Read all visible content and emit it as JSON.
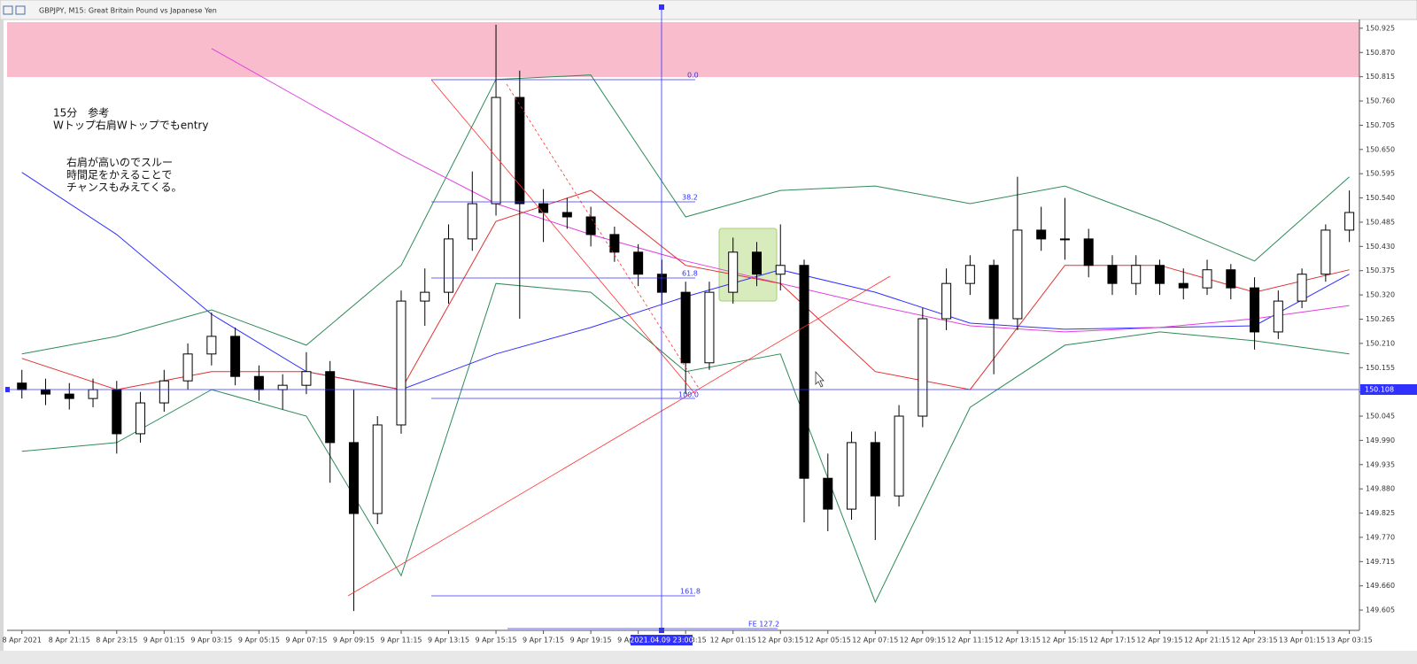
{
  "chart_data": {
    "type": "candlestick",
    "title": "GBPJPY, M15:  Great Britain Pound vs Japanese Yen",
    "annotations": [
      "15分　参考",
      "Wトップ右肩Wトップでもentry",
      "右肩が高いのでスルー",
      "時間足をかえることで",
      "チャンスもみえてくる。"
    ],
    "fib_labels": [
      "0.0",
      "38.2",
      "61.8",
      "100.0",
      "161.8",
      "FE  127.2"
    ],
    "crosshair_label": "2021.04.09 23:00",
    "current_price": 150.108,
    "up_color": "#ffffff",
    "down_color": "#000000",
    "xlim": [
      -2.5,
      225.7
    ],
    "ylim": [
      149.567,
      150.973
    ],
    "xticks": [
      {
        "value": 0,
        "label": "8 Apr 2021"
      },
      {
        "value": 8,
        "label": "8 Apr 21:15"
      },
      {
        "value": 16,
        "label": "8 Apr 23:15"
      },
      {
        "value": 24,
        "label": "9 Apr 01:15"
      },
      {
        "value": 32,
        "label": "9 Apr 03:15"
      },
      {
        "value": 40,
        "label": "9 Apr 05:15"
      },
      {
        "value": 48,
        "label": "9 Apr 07:15"
      },
      {
        "value": 56,
        "label": "9 Apr 09:15"
      },
      {
        "value": 64,
        "label": "9 Apr 11:15"
      },
      {
        "value": 72,
        "label": "9 Apr 13:15"
      },
      {
        "value": 80,
        "label": "9 Apr 15:15"
      },
      {
        "value": 88,
        "label": "9 Apr 17:15"
      },
      {
        "value": 96,
        "label": "9 Apr 19:15"
      },
      {
        "value": 104,
        "label": "9 Apr 21:15"
      },
      {
        "value": 112,
        "label": "9 Apr 23:15"
      },
      {
        "value": 120,
        "label": "12 Apr 01:15"
      },
      {
        "value": 128,
        "label": "12 Apr 03:15"
      },
      {
        "value": 136,
        "label": "12 Apr 05:15"
      },
      {
        "value": 144,
        "label": "12 Apr 07:15"
      },
      {
        "value": 152,
        "label": "12 Apr 09:15"
      },
      {
        "value": 160,
        "label": "12 Apr 11:15"
      },
      {
        "value": 168,
        "label": "12 Apr 13:15"
      },
      {
        "value": 176,
        "label": "12 Apr 15:15"
      },
      {
        "value": 184,
        "label": "12 Apr 17:15"
      },
      {
        "value": 192,
        "label": "12 Apr 19:15"
      },
      {
        "value": 200,
        "label": "12 Apr 21:15"
      },
      {
        "value": 208,
        "label": "12 Apr 23:15"
      },
      {
        "value": 216,
        "label": "13 Apr 01:15"
      },
      {
        "value": 224,
        "label": "13 Apr 03:15"
      }
    ],
    "yticks": [
      150.925,
      {
        "value": 150.87,
        "label": "150.870"
      },
      150.815,
      {
        "value": 150.76,
        "label": "150.760"
      },
      150.705,
      {
        "value": 150.65,
        "label": "150.650"
      },
      150.595,
      {
        "value": 150.54,
        "label": "150.540"
      },
      150.485,
      {
        "value": 150.43,
        "label": "150.430"
      },
      150.375,
      {
        "value": 150.32,
        "label": "150.320"
      },
      150.265,
      {
        "value": 150.21,
        "label": "150.210"
      },
      150.155,
      {
        "value": 150.1,
        "label": "150.100"
      },
      150.045,
      {
        "value": 149.99,
        "label": "149.990"
      },
      149.935,
      {
        "value": 149.88,
        "label": "149.880"
      },
      149.825,
      {
        "value": 149.77,
        "label": "149.770"
      },
      149.715,
      {
        "value": 149.66,
        "label": "149.660"
      },
      149.605
    ],
    "candles": {
      "x": [
        0,
        4,
        8,
        12,
        16,
        20,
        24,
        28,
        32,
        36,
        40,
        44,
        48,
        52,
        56,
        60,
        64,
        68,
        72,
        76,
        80,
        84,
        88,
        92,
        96,
        100,
        104,
        108,
        112,
        116,
        120,
        124,
        128,
        132,
        136,
        140,
        144,
        148,
        152,
        156,
        160,
        164,
        168,
        172,
        176,
        180,
        184,
        188,
        192,
        196,
        200,
        204,
        208,
        212,
        216,
        220,
        224
      ],
      "open": [
        150.12,
        150.105,
        150.095,
        150.085,
        150.105,
        150.005,
        150.075,
        150.125,
        150.186,
        150.226,
        150.135,
        150.105,
        150.115,
        150.146,
        149.985,
        149.824,
        150.025,
        150.306,
        150.326,
        150.447,
        150.527,
        150.768,
        150.527,
        150.507,
        150.497,
        150.457,
        150.417,
        150.367,
        150.326,
        150.166,
        150.326,
        150.417,
        150.367,
        150.387,
        149.904,
        149.834,
        149.985,
        149.864,
        150.045,
        150.266,
        150.346,
        150.387,
        150.266,
        150.467,
        150.447,
        150.447,
        150.387,
        150.346,
        150.387,
        150.346,
        150.336,
        150.377,
        150.336,
        150.236,
        150.306,
        150.367,
        150.467
      ],
      "high": [
        150.15,
        150.13,
        150.12,
        150.13,
        150.125,
        150.1,
        150.15,
        150.21,
        150.28,
        150.246,
        150.16,
        150.14,
        150.19,
        150.17,
        150.105,
        150.045,
        150.33,
        150.38,
        150.48,
        150.6,
        150.933,
        150.829,
        150.56,
        150.54,
        150.52,
        150.475,
        150.435,
        150.4,
        150.35,
        150.35,
        150.45,
        150.44,
        150.48,
        150.4,
        149.96,
        150.01,
        150.01,
        150.07,
        150.29,
        150.38,
        150.41,
        150.4,
        150.588,
        150.52,
        150.54,
        150.47,
        150.41,
        150.41,
        150.4,
        150.38,
        150.4,
        150.39,
        150.36,
        150.33,
        150.38,
        150.48,
        150.557
      ],
      "low": [
        150.085,
        150.07,
        150.06,
        150.065,
        149.96,
        149.985,
        150.055,
        150.105,
        150.16,
        150.115,
        150.08,
        150.06,
        150.095,
        149.894,
        149.603,
        149.8,
        150.005,
        150.25,
        150.3,
        150.42,
        150.5,
        150.266,
        150.44,
        150.47,
        150.43,
        150.395,
        150.34,
        150.3,
        150.095,
        150.15,
        150.3,
        150.34,
        150.33,
        149.804,
        149.784,
        149.81,
        149.764,
        149.84,
        150.02,
        150.24,
        150.32,
        150.14,
        150.24,
        150.42,
        150.4,
        150.36,
        150.32,
        150.32,
        150.32,
        150.31,
        150.32,
        150.31,
        150.196,
        150.22,
        150.29,
        150.35,
        150.44
      ],
      "close": [
        150.105,
        150.095,
        150.085,
        150.105,
        150.005,
        150.075,
        150.125,
        150.186,
        150.226,
        150.135,
        150.105,
        150.115,
        150.146,
        149.985,
        149.824,
        150.025,
        150.306,
        150.326,
        150.447,
        150.527,
        150.768,
        150.527,
        150.507,
        150.497,
        150.457,
        150.417,
        150.367,
        150.326,
        150.166,
        150.326,
        150.417,
        150.367,
        150.387,
        149.904,
        149.834,
        149.985,
        149.864,
        150.045,
        150.266,
        150.346,
        150.387,
        150.266,
        150.467,
        150.447,
        150.447,
        150.387,
        150.346,
        150.387,
        150.346,
        150.336,
        150.377,
        150.336,
        150.236,
        150.306,
        150.367,
        150.467,
        150.507
      ]
    },
    "line_x": [
      0,
      16,
      32,
      48,
      64,
      80,
      96,
      112,
      128,
      144,
      160,
      176,
      192,
      208,
      224
    ],
    "lines": [
      {
        "color": "#2e8b57",
        "values": [
          150.186,
          150.226,
          150.286,
          150.206,
          150.387,
          150.809,
          150.819,
          150.497,
          150.557,
          150.567,
          150.527,
          150.567,
          150.487,
          150.397,
          150.588
        ]
      },
      {
        "color": "#2e8b57",
        "values": [
          149.965,
          149.985,
          150.105,
          150.045,
          149.683,
          150.346,
          150.326,
          150.146,
          150.186,
          149.623,
          150.065,
          150.206,
          150.236,
          150.216,
          150.186
        ]
      },
      {
        "color": "#3030ff",
        "values": [
          150.598,
          150.457,
          150.276,
          150.146,
          150.105,
          150.186,
          150.246,
          150.316,
          150.377,
          150.326,
          150.256,
          150.242,
          150.246,
          150.25,
          150.367
        ]
      },
      {
        "color": "#e040e0",
        "values": [
          null,
          null,
          150.879,
          150.758,
          150.638,
          150.527,
          150.457,
          150.397,
          150.346,
          150.296,
          150.25,
          150.236,
          150.246,
          150.266,
          150.296
        ]
      },
      {
        "color": "#e03030",
        "values": [
          150.176,
          150.105,
          150.146,
          150.146,
          150.105,
          150.487,
          150.557,
          150.387,
          150.346,
          150.146,
          150.105,
          150.387,
          150.387,
          150.326,
          150.377
        ]
      }
    ]
  }
}
